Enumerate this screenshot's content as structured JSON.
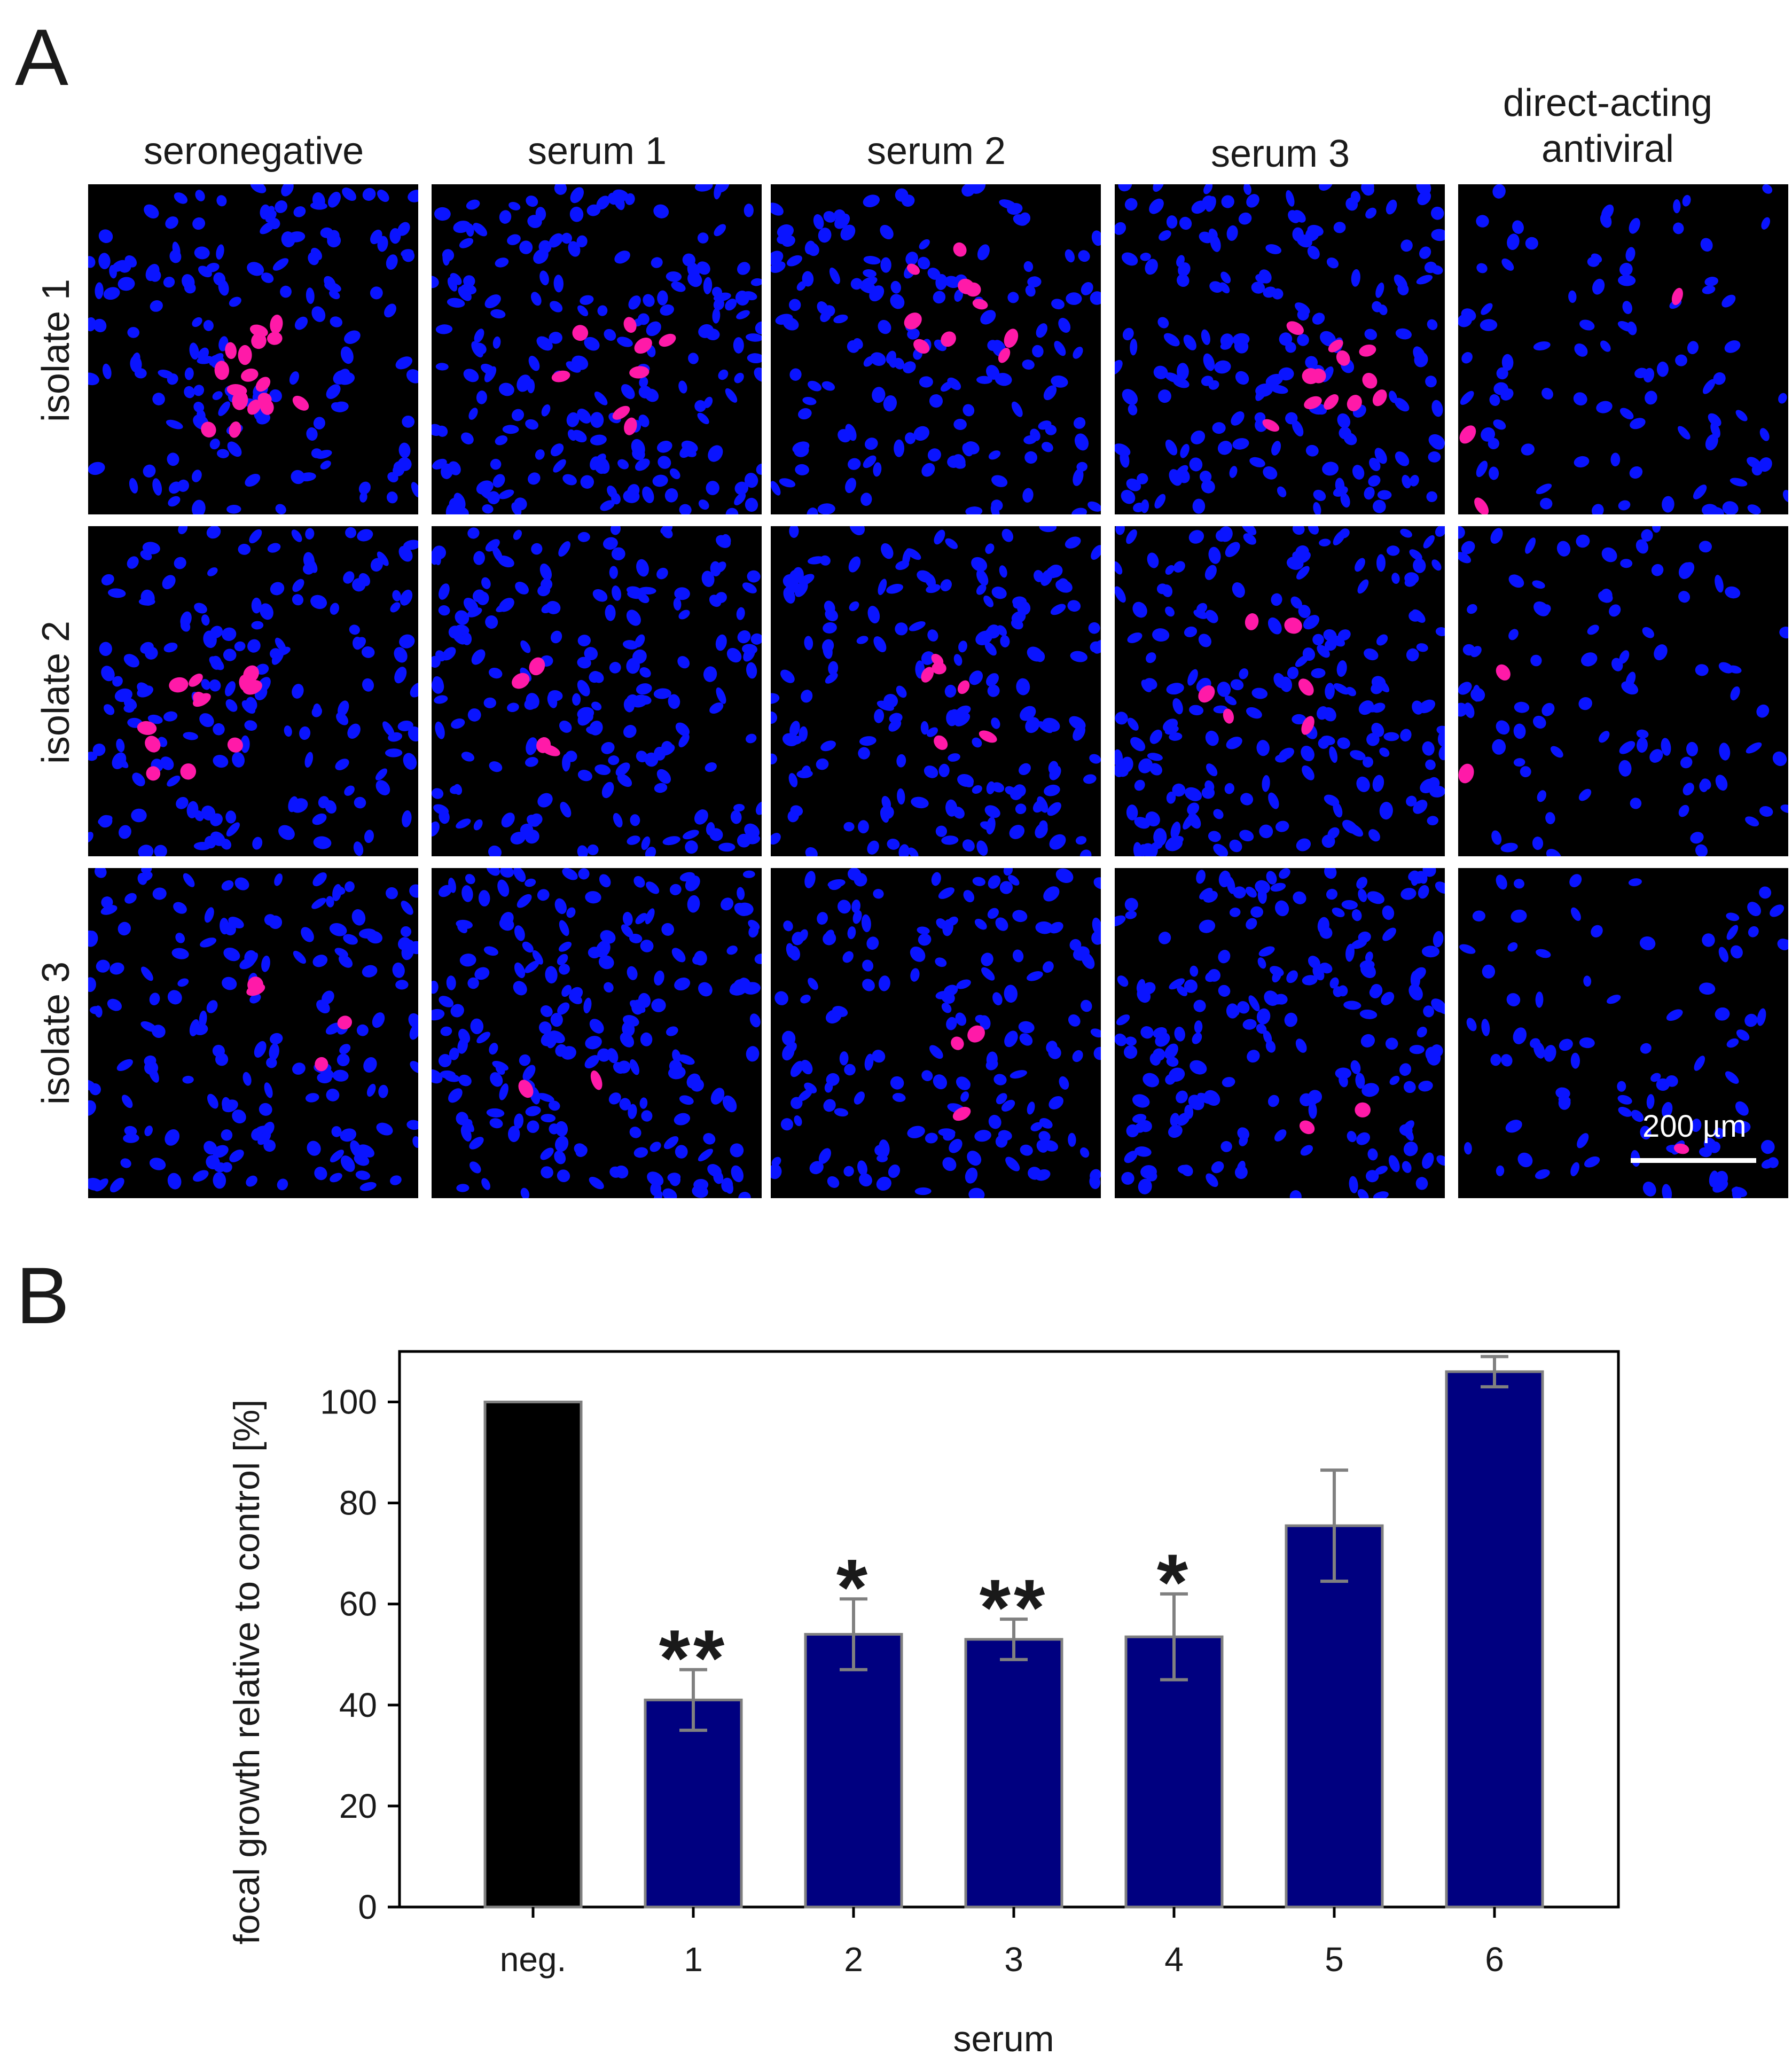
{
  "panel_a": {
    "letter": "A",
    "columns": [
      "seronegative",
      "serum 1",
      "serum 2",
      "serum 3",
      "direct-acting antiviral"
    ],
    "rows": [
      "isolate 1",
      "isolate 2",
      "isolate 3"
    ],
    "scale_bar": "200 µm",
    "colors": {
      "nuclei": "#0a14ff",
      "infected": "#ff1aa8",
      "background": "#000000"
    },
    "infected_counts": [
      [
        17,
        8,
        10,
        12,
        3
      ],
      [
        12,
        4,
        6,
        6,
        2
      ],
      [
        4,
        2,
        3,
        2,
        1
      ]
    ]
  },
  "panel_b": {
    "letter": "B"
  },
  "chart_data": {
    "type": "bar",
    "xlabel": "serum",
    "ylabel": "focal growth relative to control [%]",
    "categories": [
      "neg.",
      "1",
      "2",
      "3",
      "4",
      "5",
      "6"
    ],
    "values": [
      100,
      41,
      54,
      53,
      53.5,
      75.5,
      106
    ],
    "errors": [
      0,
      6,
      7,
      4,
      8.5,
      11,
      3
    ],
    "significance": [
      "",
      "**",
      "*",
      "**",
      "*",
      "",
      ""
    ],
    "bar_colors": [
      "#000000",
      "#000080",
      "#000080",
      "#000080",
      "#000080",
      "#000080",
      "#000080"
    ],
    "error_bar_color": "#808080",
    "ylim": [
      0,
      110
    ],
    "yticks": [
      0,
      20,
      40,
      60,
      80,
      100
    ],
    "grid": false
  }
}
